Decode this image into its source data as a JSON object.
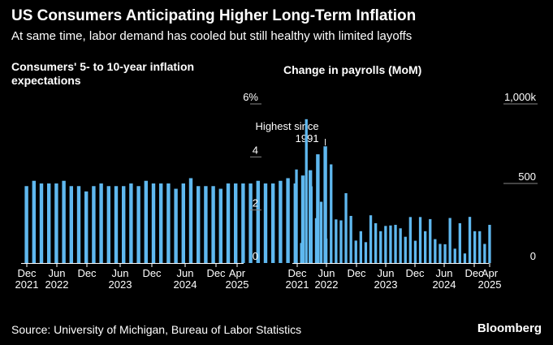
{
  "title": "US Consumers Anticipating Higher Long-Term Inflation",
  "subtitle": "At same time, labor demand has cooled but still healthy with limited layoffs",
  "source": "Source: University of Michigan, Bureau of Labor Statistics",
  "brand": "Bloomberg",
  "colors": {
    "bar": "#5fb8ef",
    "background": "#000000",
    "text": "#ffffff",
    "axis": "#ffffff"
  },
  "chart_data": [
    {
      "type": "bar",
      "title": "Consumers' 5- to 10-year inflation expectations",
      "categories": [
        "Dec 2021",
        "Jan 2022",
        "Feb 2022",
        "Mar 2022",
        "Apr 2022",
        "May 2022",
        "Jun 2022",
        "Jul 2022",
        "Aug 2022",
        "Sep 2022",
        "Oct 2022",
        "Nov 2022",
        "Dec 2022",
        "Jan 2023",
        "Feb 2023",
        "Mar 2023",
        "Apr 2023",
        "May 2023",
        "Jun 2023",
        "Jul 2023",
        "Aug 2023",
        "Sep 2023",
        "Oct 2023",
        "Nov 2023",
        "Dec 2023",
        "Jan 2024",
        "Feb 2024",
        "Mar 2024",
        "Apr 2024",
        "May 2024",
        "Jun 2024",
        "Jul 2024",
        "Aug 2024",
        "Sep 2024",
        "Oct 2024",
        "Nov 2024",
        "Dec 2024",
        "Jan 2025",
        "Feb 2025",
        "Mar 2025",
        "Apr 2025"
      ],
      "values": [
        2.9,
        3.1,
        3.0,
        3.0,
        3.0,
        3.1,
        2.9,
        2.9,
        2.7,
        2.9,
        3.0,
        2.9,
        2.9,
        2.9,
        3.0,
        2.9,
        3.1,
        3.0,
        3.0,
        3.0,
        2.8,
        3.0,
        3.2,
        2.9,
        2.9,
        2.9,
        2.8,
        3.0,
        3.0,
        3.0,
        3.0,
        3.1,
        3.0,
        3.0,
        3.1,
        3.2,
        3.0,
        3.3,
        3.5,
        4.1,
        4.4
      ],
      "ylim": [
        0,
        6
      ],
      "yticks": [
        0,
        2,
        4,
        6
      ],
      "ytick_labels": [
        "0",
        "2",
        "4",
        "6%"
      ],
      "xtick_labels": [
        {
          "month": "Dec",
          "year": "2021"
        },
        {
          "month": "Jun",
          "year": "2022"
        },
        {
          "month": "Dec",
          "year": ""
        },
        {
          "month": "Jun",
          "year": "2023"
        },
        {
          "month": "Dec",
          "year": ""
        },
        {
          "month": "Jun",
          "year": "2024"
        },
        {
          "month": "Dec",
          "year": ""
        },
        {
          "month": "Apr",
          "year": "2025"
        }
      ],
      "annotation": [
        "Highest since",
        "1991"
      ],
      "grid": false
    },
    {
      "type": "bar",
      "title": "Change in payrolls (MoM)",
      "categories": [
        "Dec 2021",
        "Jan 2022",
        "Feb 2022",
        "Mar 2022",
        "Apr 2022",
        "May 2022",
        "Jun 2022",
        "Jul 2022",
        "Aug 2022",
        "Sep 2022",
        "Oct 2022",
        "Nov 2022",
        "Dec 2022",
        "Jan 2023",
        "Feb 2023",
        "Mar 2023",
        "Apr 2023",
        "May 2023",
        "Jun 2023",
        "Jul 2023",
        "Aug 2023",
        "Sep 2023",
        "Oct 2023",
        "Nov 2023",
        "Dec 2023",
        "Jan 2024",
        "Feb 2024",
        "Mar 2024",
        "Apr 2024",
        "May 2024",
        "Jun 2024",
        "Jul 2024",
        "Aug 2024",
        "Sep 2024",
        "Oct 2024",
        "Nov 2024",
        "Dec 2024",
        "Jan 2025",
        "Feb 2025",
        "Mar 2025"
      ],
      "values": [
        588,
        126,
        904,
        482,
        282,
        385,
        154,
        620,
        274,
        268,
        439,
        296,
        141,
        200,
        131,
        300,
        250,
        200,
        233,
        236,
        240,
        218,
        165,
        289,
        140,
        289,
        200,
        276,
        150,
        120,
        118,
        283,
        90,
        250,
        60,
        290,
        200,
        200,
        120,
        240
      ],
      "ylim": [
        0,
        1000
      ],
      "yticks": [
        0,
        500,
        1000
      ],
      "ytick_labels": [
        "0",
        "500",
        "1,000k"
      ],
      "xtick_labels": [
        {
          "month": "Dec",
          "year": "2021"
        },
        {
          "month": "Jun",
          "year": "2022"
        },
        {
          "month": "Dec",
          "year": ""
        },
        {
          "month": "Jun",
          "year": "2023"
        },
        {
          "month": "Dec",
          "year": ""
        },
        {
          "month": "Jun",
          "year": "2024"
        },
        {
          "month": "Dec",
          "year": ""
        },
        {
          "month": "Apr",
          "year": "2025"
        }
      ],
      "grid": false
    }
  ]
}
